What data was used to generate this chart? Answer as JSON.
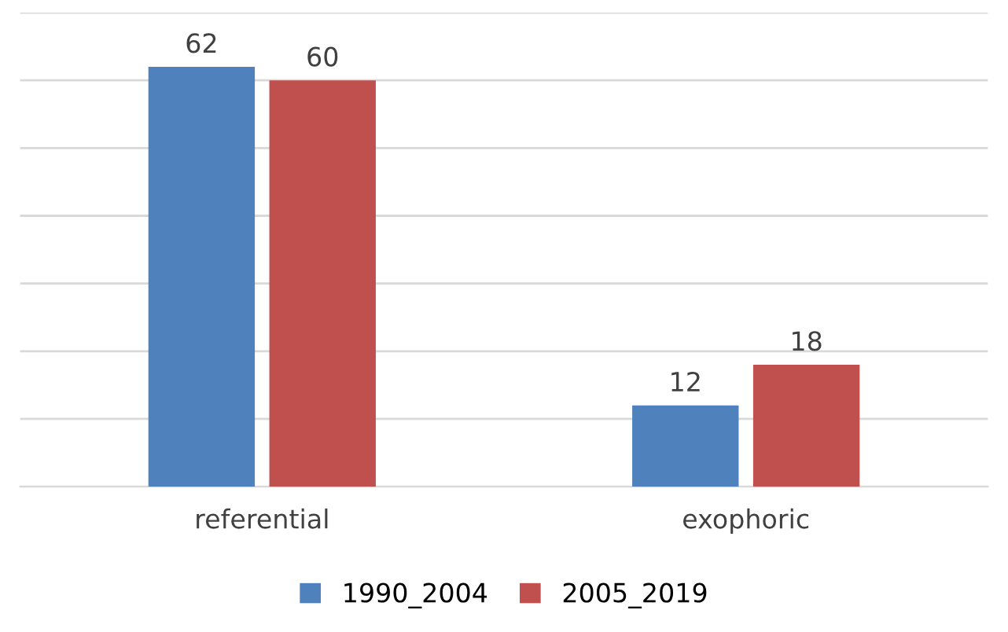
{
  "chart_data": {
    "type": "bar",
    "categories": [
      "referential",
      "exophoric"
    ],
    "series": [
      {
        "name": "1990_2004",
        "color": "#4f81bd",
        "values": [
          62,
          12
        ]
      },
      {
        "name": "2005_2019",
        "color": "#c0504d",
        "values": [
          60,
          18
        ]
      }
    ],
    "ylim": [
      0,
      70
    ],
    "yticks": [
      {
        "value": 0,
        "label": null
      },
      {
        "value": 10,
        "label": null
      },
      {
        "value": 20,
        "label": null
      },
      {
        "value": 30,
        "label": null
      },
      {
        "value": 40,
        "label": null
      },
      {
        "value": 50,
        "label": null
      },
      {
        "value": 60,
        "label": null
      },
      {
        "value": 70,
        "label": null
      }
    ],
    "grid": "y",
    "data_labels": true,
    "legend": "bottom",
    "tick_labels": "x"
  }
}
